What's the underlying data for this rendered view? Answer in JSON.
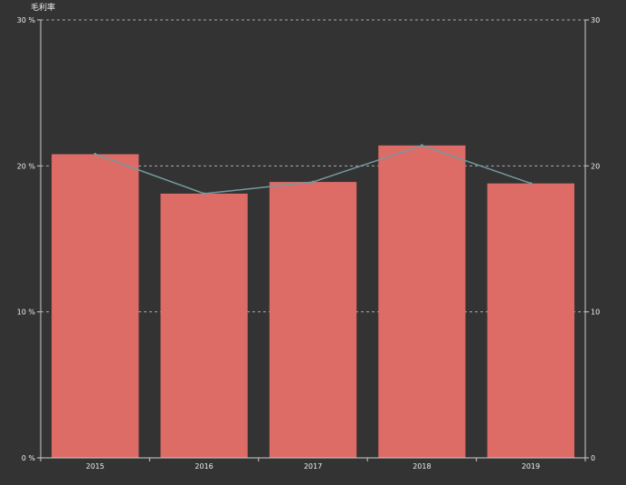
{
  "colors": {
    "background": "#333333",
    "bar": "#dd6b66",
    "line": "#759aa0",
    "axis": "#cccccc",
    "grid": "#aaaaaa",
    "text": "#eeeeee"
  },
  "chart_data": {
    "type": "bar",
    "title": "",
    "ylabel": "毛利率",
    "categories": [
      "2015",
      "2016",
      "2017",
      "2018",
      "2019"
    ],
    "series": [
      {
        "type": "bar",
        "axis": "left",
        "values": [
          20.8,
          18.1,
          18.9,
          21.4,
          18.8
        ]
      },
      {
        "type": "line",
        "axis": "right",
        "values": [
          20.8,
          18.1,
          18.9,
          21.4,
          18.8
        ]
      }
    ],
    "y_left": {
      "ylim": [
        0,
        30
      ],
      "ticks": [
        0,
        10,
        20,
        30
      ],
      "tick_labels": [
        "0 %",
        "10 %",
        "20 %",
        "30 %"
      ]
    },
    "y_right": {
      "ylim": [
        0,
        30
      ],
      "ticks": [
        0,
        10,
        20,
        30
      ],
      "tick_labels": [
        "0",
        "10",
        "20",
        "30"
      ]
    },
    "grid": true,
    "grid_style": "dashed",
    "legend": "none"
  }
}
